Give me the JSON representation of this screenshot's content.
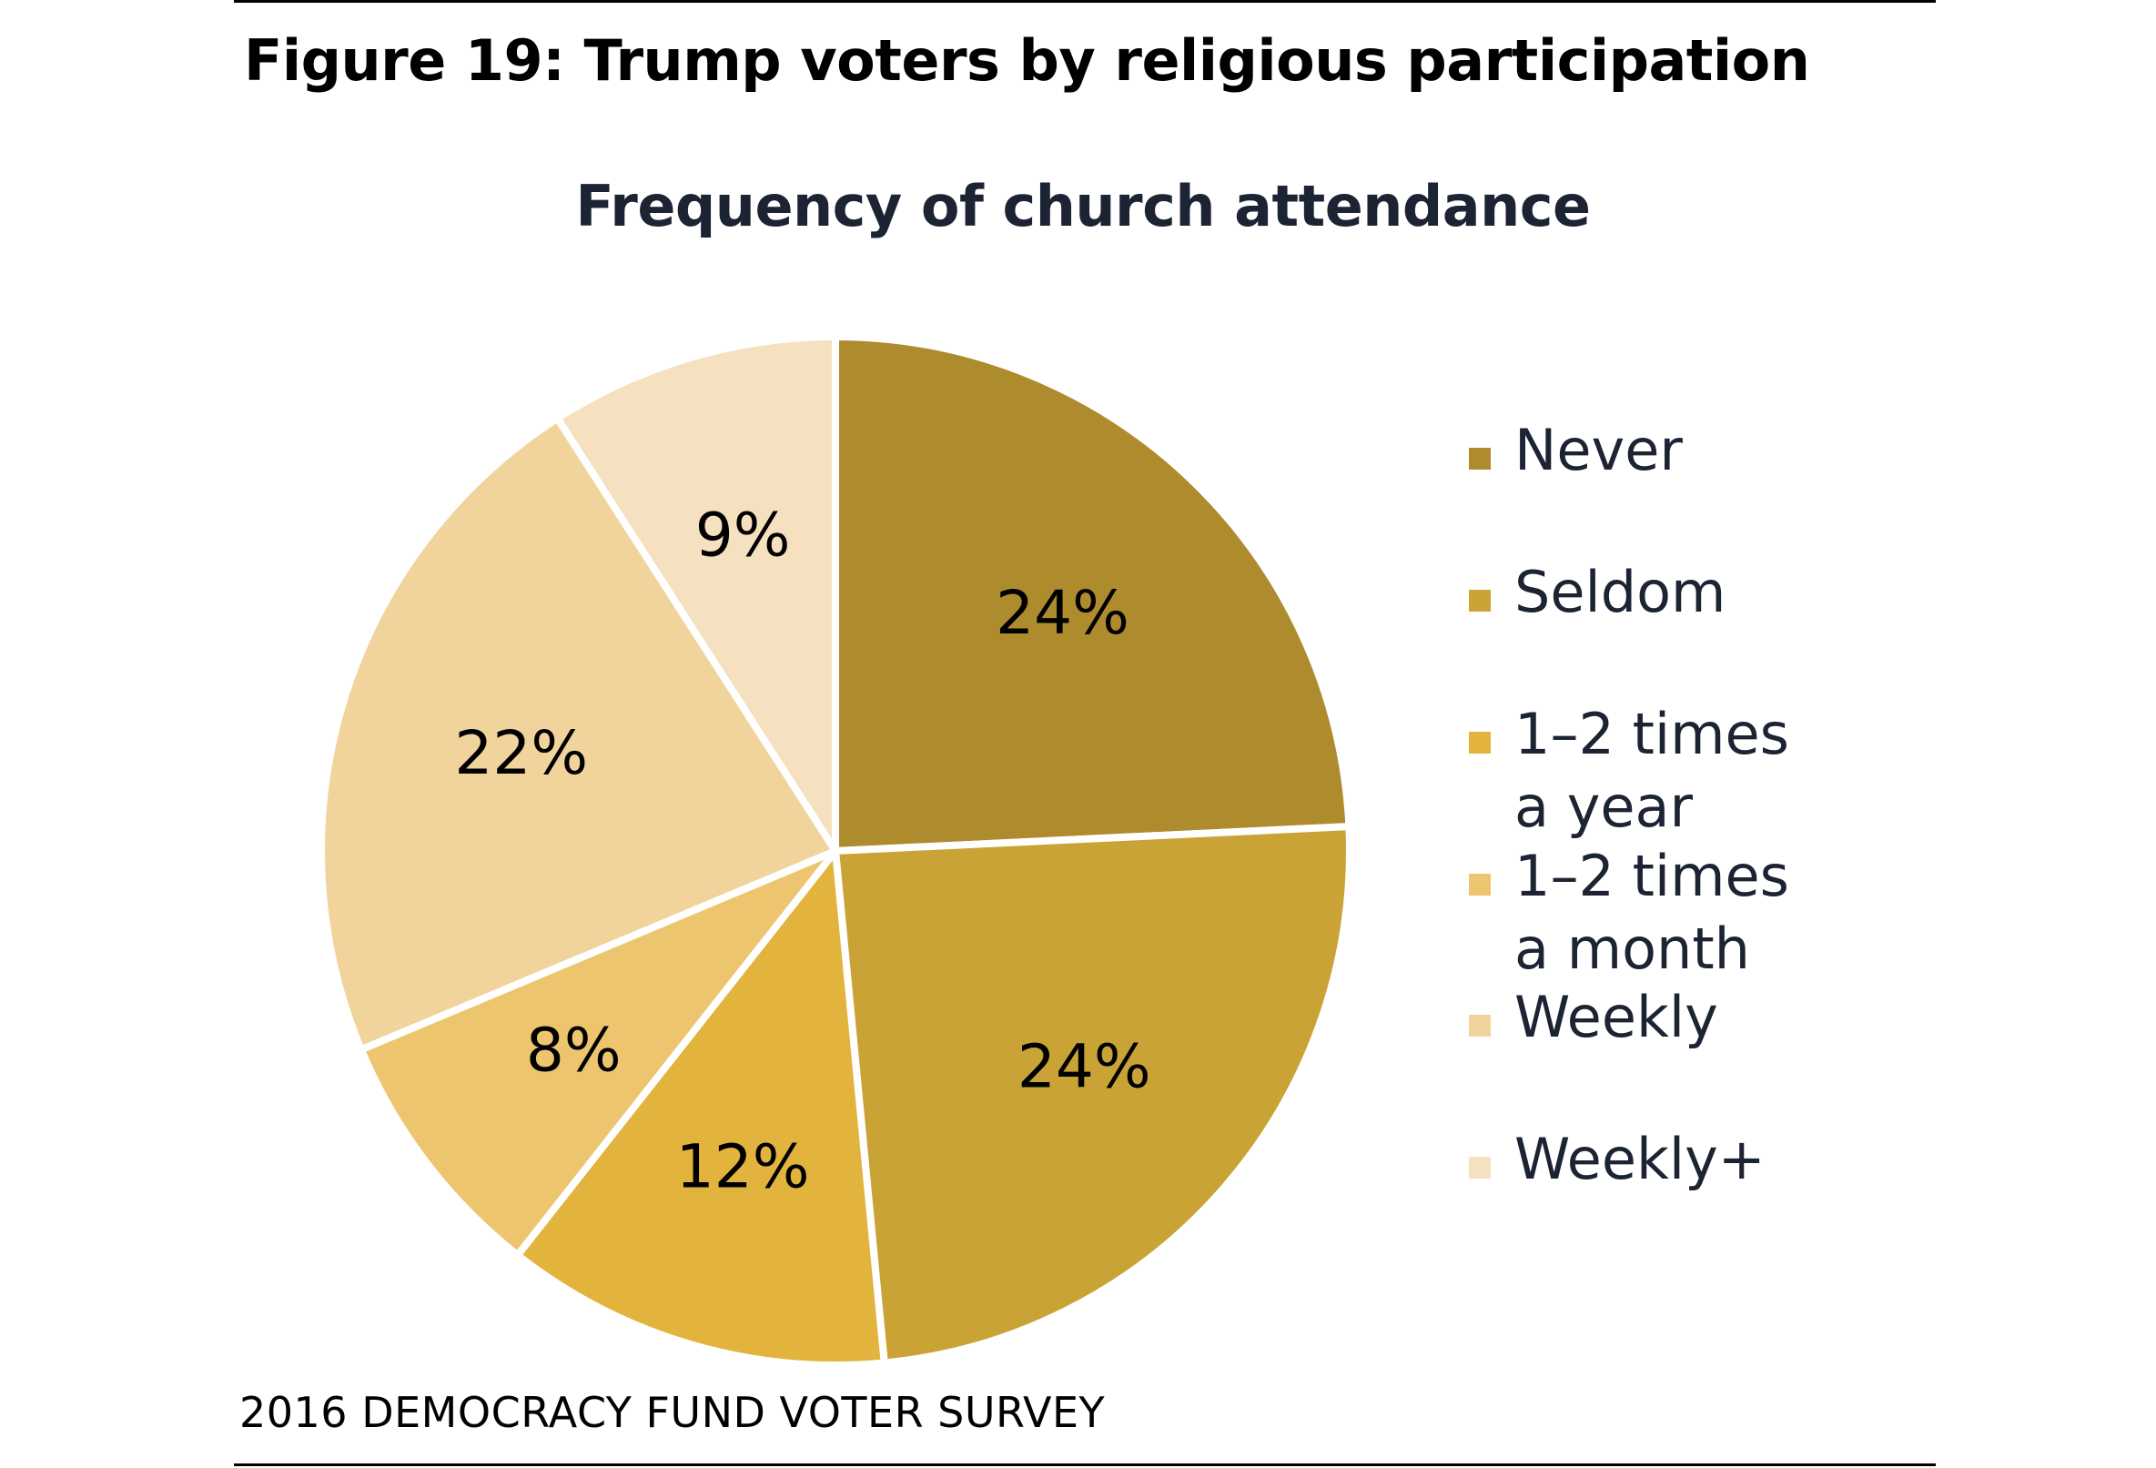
{
  "figure_title": "Figure 19: Trump voters by religious participation",
  "source": "2016 DEMOCRACY FUND VOTER SURVEY",
  "chart_data": {
    "type": "pie",
    "title": "Frequency of church attendance",
    "start_angle_deg": 0,
    "direction": "clockwise",
    "slices": [
      {
        "name": "Never",
        "value": 24,
        "label": "24%",
        "color": "#ae8b2d"
      },
      {
        "name": "Seldom",
        "value": 24,
        "label": "24%",
        "color": "#c9a335"
      },
      {
        "name": "1–2 times a year",
        "value": 12,
        "label": "12%",
        "color": "#e2b33d"
      },
      {
        "name": "1–2 times a month",
        "value": 8,
        "label": "8%",
        "color": "#edc56f"
      },
      {
        "name": "Weekly",
        "value": 22,
        "label": "22%",
        "color": "#f1d49c"
      },
      {
        "name": "Weekly+",
        "value": 9,
        "label": "9%",
        "color": "#f5e1bf"
      }
    ],
    "legend": {
      "placement": "right",
      "items": [
        {
          "label": "Never",
          "color": "#ae8b2d"
        },
        {
          "label": "Seldom",
          "color": "#c9a335"
        },
        {
          "label": "1–2 times\na year",
          "color": "#e2b33d"
        },
        {
          "label": "1–2 times\na month",
          "color": "#edc56f"
        },
        {
          "label": "Weekly",
          "color": "#f1d49c"
        },
        {
          "label": "Weekly+",
          "color": "#f5e1bf"
        }
      ]
    }
  }
}
